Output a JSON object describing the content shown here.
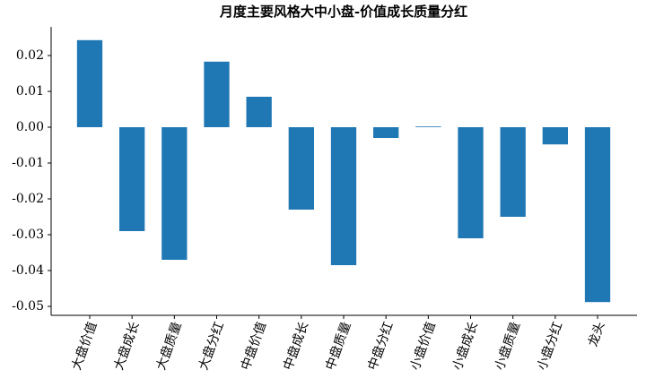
{
  "chart_data": {
    "type": "bar",
    "title": "月度主要风格大中小盘-价值成长质量分红",
    "categories": [
      "大盘价值",
      "大盘成长",
      "大盘质量",
      "大盘分红",
      "中盘价值",
      "中盘成长",
      "中盘质量",
      "中盘分红",
      "小盘价值",
      "小盘成长",
      "小盘质量",
      "小盘分红",
      "龙头"
    ],
    "values": [
      0.0243,
      -0.029,
      -0.037,
      0.0183,
      0.0085,
      -0.023,
      -0.0385,
      -0.003,
      0.0002,
      -0.031,
      -0.025,
      -0.0048,
      -0.0488
    ],
    "color": "#1f77b4",
    "ylim": [
      -0.0525,
      0.028
    ],
    "yticks": [
      0.02,
      0.01,
      {
        "value": 0,
        "label": "0.00"
      },
      -0.01,
      -0.02,
      -0.03,
      -0.04,
      -0.05
    ]
  }
}
